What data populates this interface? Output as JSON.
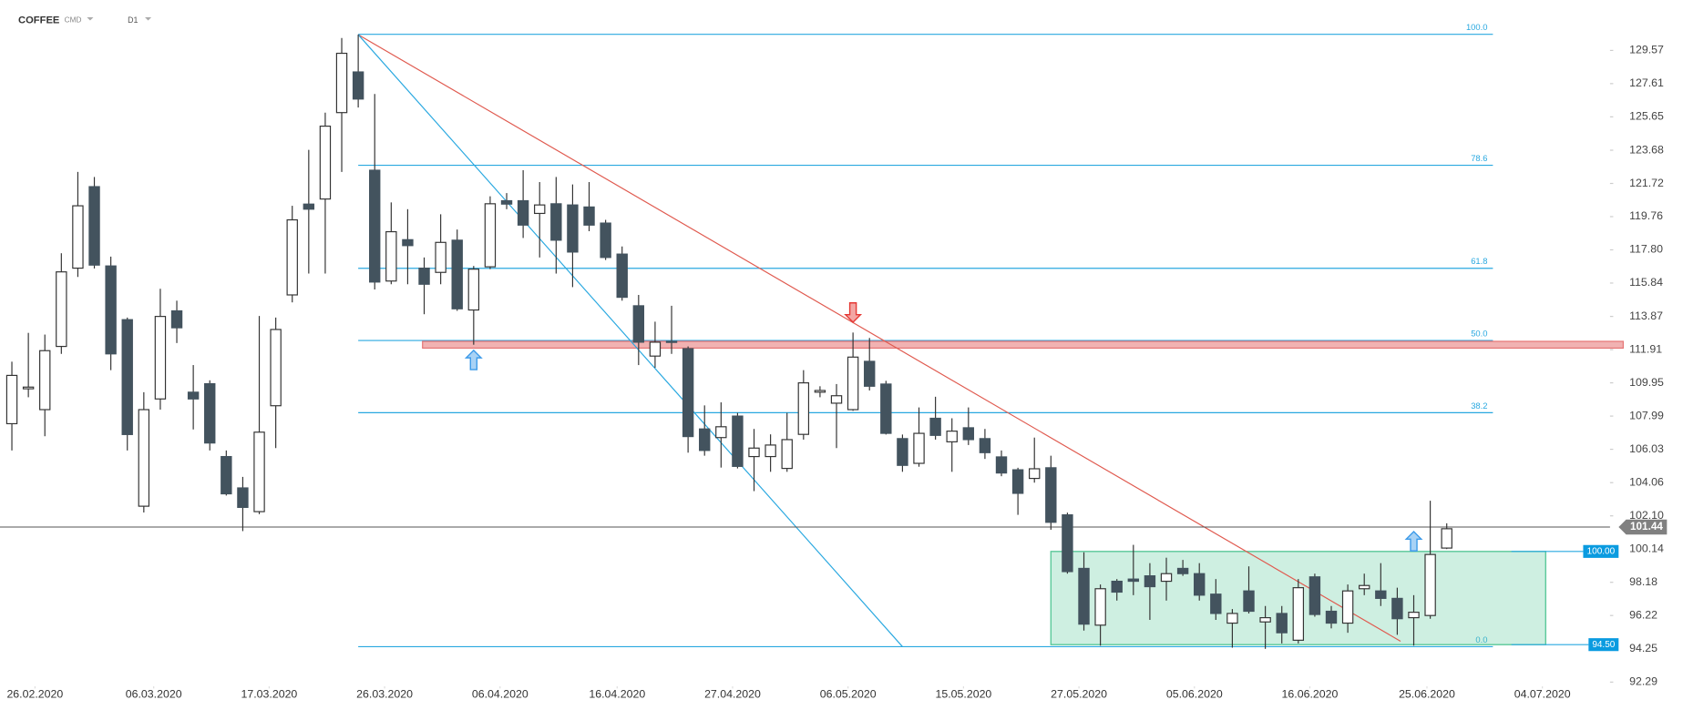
{
  "chart_data": {
    "type": "candlestick",
    "title": "COFFEE",
    "market": "CMD",
    "interval": "D1",
    "open": [
      107.54,
      109.6,
      108.37,
      112.1,
      116.72,
      121.53,
      116.85,
      113.68,
      102.67,
      109.0,
      114.2,
      109.4,
      109.9,
      105.6,
      103.75,
      102.35,
      108.6,
      115.14,
      120.5,
      120.8,
      125.9,
      128.3,
      122.5,
      115.96,
      118.4,
      116.72,
      116.47,
      118.37,
      114.25,
      116.8,
      120.7,
      120.7,
      119.95,
      120.52,
      120.45,
      120.33,
      119.38,
      117.55,
      114.5,
      111.53,
      112.4,
      111.97,
      107.23,
      106.72,
      107.99,
      105.6,
      105.6,
      104.9,
      106.91,
      109.4,
      108.75,
      108.37,
      111.22,
      109.88,
      106.66,
      105.2,
      107.86,
      106.47,
      107.3,
      106.66,
      105.58,
      104.82,
      104.31,
      104.94,
      102.16,
      99.0,
      95.65,
      98.24,
      98.37,
      98.56,
      98.24,
      99.0,
      98.69,
      97.48,
      95.77,
      97.67,
      95.84,
      96.34,
      94.76,
      98.5,
      96.47,
      95.77,
      97.8,
      97.67,
      97.23,
      96.09,
      96.22,
      100.2
    ],
    "high": [
      111.2,
      112.9,
      112.8,
      117.6,
      122.4,
      122.1,
      117.4,
      113.8,
      109.4,
      115.5,
      114.8,
      111.0,
      110.1,
      105.96,
      104.4,
      113.9,
      113.8,
      120.4,
      123.7,
      125.9,
      130.3,
      130.5,
      127.0,
      120.6,
      120.2,
      117.35,
      119.9,
      119.0,
      116.85,
      120.96,
      121.15,
      122.5,
      121.8,
      122.1,
      121.66,
      121.8,
      119.57,
      118.0,
      115.14,
      113.56,
      114.5,
      112.1,
      108.62,
      108.8,
      108.18,
      107.23,
      106.91,
      108.18,
      110.7,
      109.75,
      109.88,
      112.92,
      112.6,
      110.07,
      106.9,
      108.5,
      109.13,
      107.86,
      108.5,
      107.23,
      105.96,
      104.94,
      106.72,
      105.65,
      102.29,
      99.95,
      98.05,
      98.37,
      100.39,
      99.31,
      99.63,
      99.5,
      99.31,
      98.37,
      96.6,
      99.12,
      96.78,
      96.78,
      98.37,
      98.69,
      96.78,
      98.05,
      98.69,
      99.31,
      97.86,
      97.42,
      102.99,
      101.66
    ],
    "low": [
      105.96,
      109.1,
      106.8,
      111.66,
      116.2,
      116.7,
      110.7,
      105.96,
      102.3,
      108.37,
      112.3,
      107.2,
      105.96,
      103.3,
      101.2,
      102.2,
      106.1,
      114.7,
      116.4,
      116.4,
      122.4,
      126.2,
      115.46,
      115.77,
      115.77,
      114.0,
      115.77,
      114.2,
      112.2,
      116.66,
      120.2,
      118.5,
      117.35,
      116.4,
      115.6,
      118.9,
      117.2,
      114.8,
      111.0,
      110.84,
      111.66,
      105.83,
      105.65,
      104.95,
      104.9,
      103.56,
      104.7,
      104.7,
      106.6,
      109.1,
      106.1,
      108.3,
      109.5,
      106.9,
      104.7,
      105.0,
      106.6,
      104.7,
      106.28,
      105.46,
      104.44,
      102.16,
      104.06,
      101.28,
      98.69,
      95.33,
      94.44,
      97.1,
      97.42,
      95.96,
      97.1,
      98.56,
      97.1,
      95.96,
      94.32,
      96.34,
      94.25,
      94.57,
      94.57,
      96.15,
      95.46,
      95.2,
      97.42,
      96.78,
      95.08,
      94.44,
      96.03,
      100.14
    ],
    "close": [
      110.39,
      109.7,
      111.85,
      116.5,
      120.4,
      116.9,
      111.66,
      106.9,
      108.37,
      113.87,
      113.2,
      109.0,
      106.4,
      103.4,
      102.6,
      107.04,
      113.1,
      119.57,
      120.2,
      125.1,
      129.4,
      126.7,
      115.9,
      118.87,
      118.05,
      115.77,
      118.24,
      114.32,
      116.66,
      120.52,
      120.5,
      119.26,
      120.45,
      118.37,
      117.67,
      119.26,
      117.35,
      115.0,
      112.35,
      112.35,
      112.35,
      106.78,
      105.96,
      107.36,
      105.02,
      106.1,
      106.28,
      106.6,
      109.95,
      109.5,
      109.19,
      111.47,
      109.75,
      106.97,
      105.08,
      106.97,
      106.85,
      107.1,
      106.6,
      105.83,
      104.63,
      103.43,
      104.88,
      101.72,
      98.81,
      95.71,
      97.8,
      97.6,
      98.24,
      97.92,
      98.69,
      98.69,
      97.42,
      96.34,
      96.34,
      96.47,
      96.09,
      95.2,
      97.86,
      96.28,
      95.77,
      97.67,
      97.99,
      97.23,
      96.03,
      96.41,
      99.82,
      101.34
    ],
    "up_color": "#ffffff",
    "down_color": "#43535e",
    "xlim": [
      -0.72,
      96.9
    ],
    "ylim": [
      92.04,
      132.54
    ],
    "xticks": [
      {
        "value": 1.4,
        "label": "26.02.2020"
      },
      {
        "value": 8.6,
        "label": "06.03.2020"
      },
      {
        "value": 15.6,
        "label": "17.03.2020"
      },
      {
        "value": 22.6,
        "label": "26.03.2020"
      },
      {
        "value": 29.6,
        "label": "06.04.2020"
      },
      {
        "value": 36.7,
        "label": "16.04.2020"
      },
      {
        "value": 43.7,
        "label": "27.04.2020"
      },
      {
        "value": 50.7,
        "label": "06.05.2020"
      },
      {
        "value": 57.7,
        "label": "15.05.2020"
      },
      {
        "value": 64.7,
        "label": "27.05.2020"
      },
      {
        "value": 71.7,
        "label": "05.06.2020"
      },
      {
        "value": 78.7,
        "label": "16.06.2020"
      },
      {
        "value": 85.8,
        "label": "25.06.2020"
      },
      {
        "value": 92.8,
        "label": "04.07.2020"
      }
    ],
    "yticks": [
      129.57,
      127.61,
      125.65,
      123.68,
      121.72,
      119.76,
      {
        "value": 117.8,
        "label": "117.80"
      },
      115.84,
      113.87,
      111.91,
      109.95,
      107.99,
      106.03,
      104.06,
      {
        "value": 102.1,
        "label": "102.10"
      },
      100.14,
      98.18,
      96.22,
      94.25,
      92.29
    ],
    "last_price": 101.44,
    "fib_color": "#29a8e0",
    "fib_range": [
      21,
      89.8
    ],
    "fib_levels": [
      {
        "label": "100.0",
        "price": 130.52
      },
      {
        "label": "78.6",
        "price": 122.79
      },
      {
        "label": "61.8",
        "price": 116.71
      },
      {
        "label": "50.0",
        "price": 112.45
      },
      {
        "label": "38.2",
        "price": 108.19
      },
      {
        "label": "0.0",
        "price": 94.38
      }
    ],
    "resistance_zone": {
      "low": 112.0,
      "high": 112.4,
      "from": 24.9,
      "to": 97.7,
      "color": "#e57373"
    },
    "range_box": {
      "top": {
        "value": 100,
        "label": "100.00"
      },
      "bottom": {
        "value": 94.5,
        "label": "94.50"
      },
      "from": 63.0,
      "to": 93.0,
      "color": "#5cc99a"
    },
    "trendlines": [
      {
        "color": "#e05a4f",
        "from": [
          21,
          130.5
        ],
        "to": [
          84.2,
          94.7
        ]
      },
      {
        "color": "#29a8e0",
        "from": [
          21,
          130.5
        ],
        "to": [
          54.0,
          94.38
        ]
      }
    ],
    "markers": [
      {
        "candle": 28,
        "price": 111.3,
        "direction": "up",
        "color": "#3d9be9"
      },
      {
        "candle": 51,
        "price": 114.1,
        "direction": "down",
        "color": "#e53935"
      },
      {
        "candle": 85,
        "price": 100.6,
        "direction": "up",
        "color": "#3d9be9"
      }
    ]
  }
}
